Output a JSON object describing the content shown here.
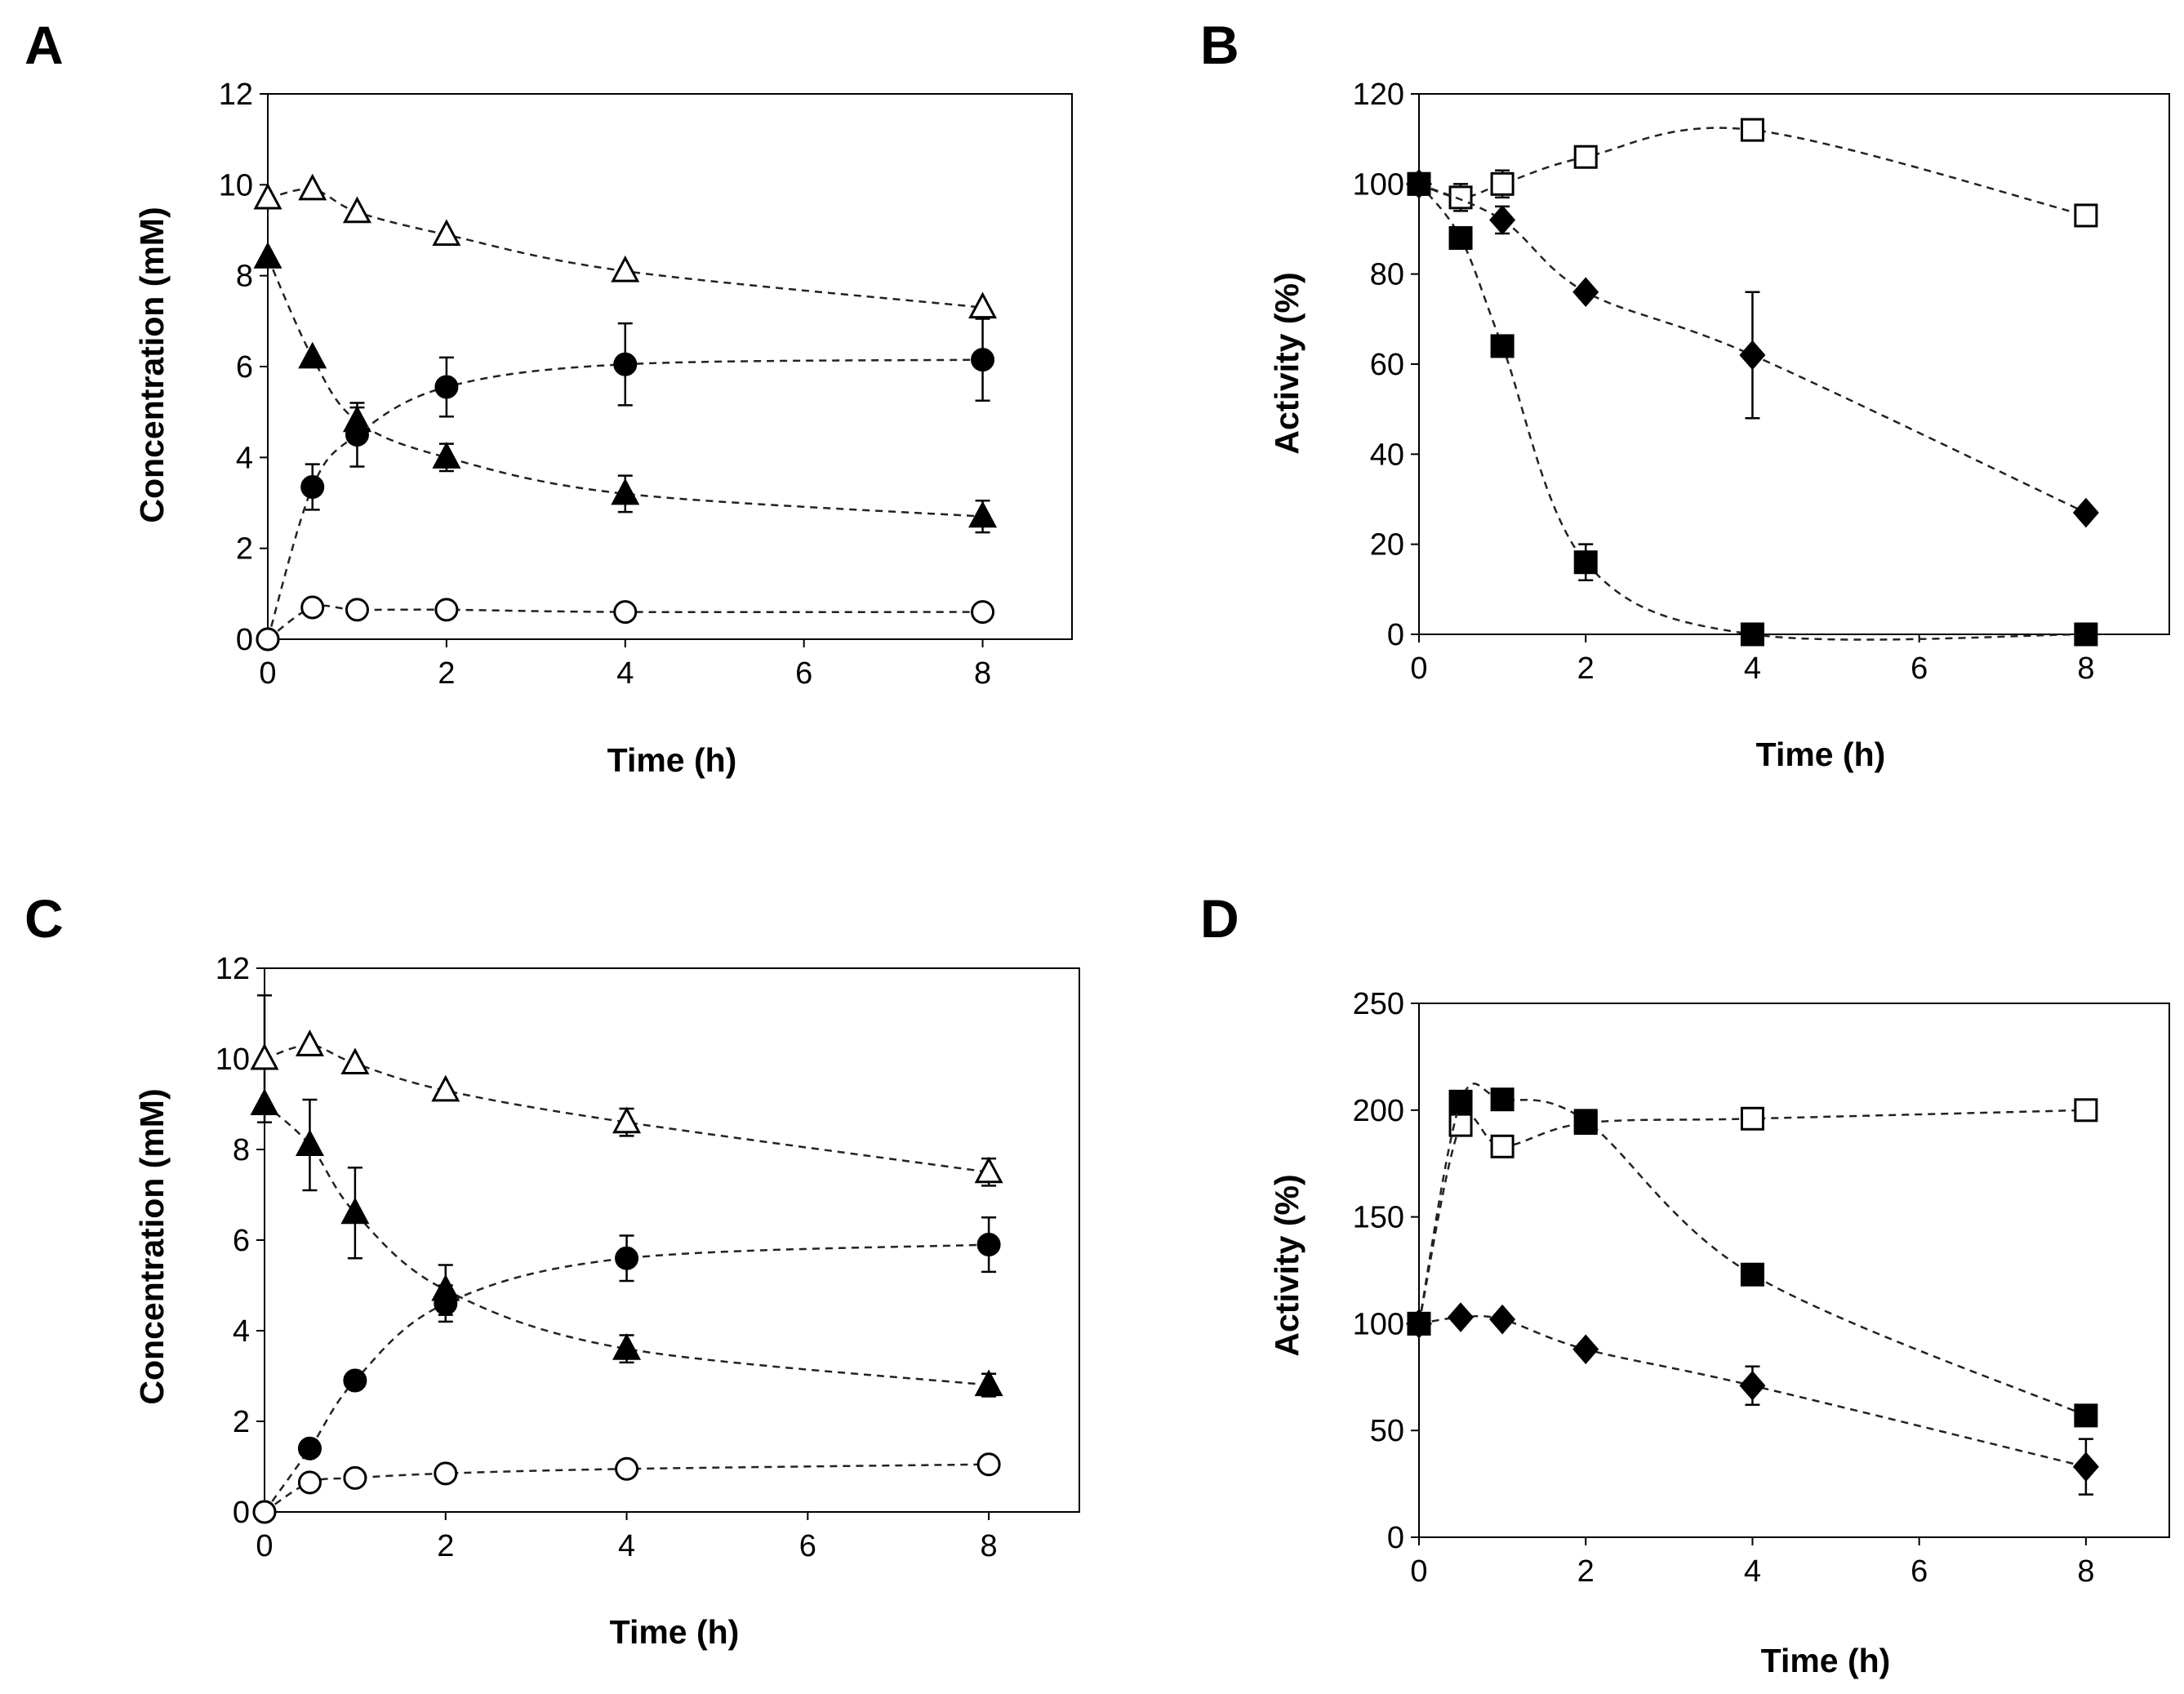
{
  "chart_data": [
    {
      "panel": "A",
      "type": "scatter",
      "xlabel": "Time (h)",
      "ylabel": "Concentration (mM)",
      "xlim": [
        0,
        9
      ],
      "ylim": [
        0,
        12
      ],
      "xticks": [
        0,
        2,
        4,
        6,
        8
      ],
      "yticks": [
        0,
        2,
        4,
        6,
        8,
        10,
        12
      ],
      "series": [
        {
          "marker": "triangle-open",
          "x": [
            0,
            0.5,
            1,
            2,
            4,
            8
          ],
          "y": [
            9.7,
            9.9,
            9.4,
            8.9,
            8.1,
            7.3
          ],
          "err": [
            0,
            0,
            0,
            0,
            0,
            0
          ]
        },
        {
          "marker": "triangle-filled",
          "x": [
            0,
            0.5,
            1,
            2,
            4,
            8
          ],
          "y": [
            8.4,
            6.2,
            4.8,
            4.0,
            3.2,
            2.7
          ],
          "err": [
            0,
            0,
            0.3,
            0.3,
            0.4,
            0.35
          ]
        },
        {
          "marker": "circle-filled",
          "x": [
            0,
            0.5,
            1,
            2,
            4,
            8
          ],
          "y": [
            0,
            3.35,
            4.5,
            5.55,
            6.05,
            6.15
          ],
          "err": [
            0,
            0.5,
            0.7,
            0.65,
            0.9,
            0.9
          ]
        },
        {
          "marker": "circle-open",
          "x": [
            0,
            0.5,
            1,
            2,
            4,
            8
          ],
          "y": [
            0,
            0.7,
            0.65,
            0.65,
            0.6,
            0.6
          ],
          "err": [
            0,
            0,
            0,
            0,
            0,
            0
          ]
        }
      ]
    },
    {
      "panel": "B",
      "type": "scatter",
      "xlabel": "Time (h)",
      "ylabel": "Activity (%)",
      "xlim": [
        0,
        9
      ],
      "ylim": [
        0,
        120
      ],
      "xticks": [
        0,
        2,
        4,
        6,
        8
      ],
      "yticks": [
        0,
        20,
        40,
        60,
        80,
        100,
        120
      ],
      "series": [
        {
          "marker": "square-open",
          "x": [
            0,
            0.5,
            1,
            2,
            4,
            8
          ],
          "y": [
            100,
            97,
            100,
            106,
            112,
            93
          ],
          "err": [
            0,
            3,
            3,
            0,
            0,
            0
          ]
        },
        {
          "marker": "diamond-filled",
          "x": [
            0,
            1,
            2,
            4,
            8
          ],
          "y": [
            100,
            92,
            76,
            62,
            27
          ],
          "err": [
            0,
            3,
            0,
            14,
            0
          ]
        },
        {
          "marker": "square-filled",
          "x": [
            0,
            0.5,
            1,
            2,
            4,
            8
          ],
          "y": [
            100,
            88,
            64,
            16,
            0,
            0
          ],
          "err": [
            0,
            0,
            0,
            4,
            0,
            0
          ]
        }
      ]
    },
    {
      "panel": "C",
      "type": "scatter",
      "xlabel": "Time (h)",
      "ylabel": "Concentration (mM)",
      "xlim": [
        0,
        9
      ],
      "ylim": [
        0,
        12
      ],
      "xticks": [
        0,
        2,
        4,
        6,
        8
      ],
      "yticks": [
        0,
        2,
        4,
        6,
        8,
        10,
        12
      ],
      "series": [
        {
          "marker": "triangle-open",
          "x": [
            0,
            0.5,
            1,
            2,
            4,
            8
          ],
          "y": [
            10.0,
            10.3,
            9.9,
            9.3,
            8.6,
            7.5
          ],
          "err": [
            1.4,
            0,
            0,
            0,
            0.3,
            0.3
          ]
        },
        {
          "marker": "triangle-filled",
          "x": [
            0,
            0.5,
            1,
            2,
            4,
            8
          ],
          "y": [
            9.0,
            8.1,
            6.6,
            4.9,
            3.6,
            2.8
          ],
          "err": [
            0,
            1.0,
            1.0,
            0.55,
            0.3,
            0.25
          ]
        },
        {
          "marker": "circle-filled",
          "x": [
            0,
            0.5,
            1,
            2,
            4,
            8
          ],
          "y": [
            0,
            1.4,
            2.9,
            4.6,
            5.6,
            5.9
          ],
          "err": [
            0,
            0,
            0,
            0.4,
            0.5,
            0.6
          ]
        },
        {
          "marker": "circle-open",
          "x": [
            0,
            0.5,
            1,
            2,
            4,
            8
          ],
          "y": [
            0,
            0.65,
            0.75,
            0.85,
            0.95,
            1.05
          ],
          "err": [
            0,
            0,
            0,
            0,
            0,
            0
          ]
        }
      ]
    },
    {
      "panel": "D",
      "type": "scatter",
      "xlabel": "Time (h)",
      "ylabel": "Activity (%)",
      "xlim": [
        0,
        9
      ],
      "ylim": [
        0,
        250
      ],
      "xticks": [
        0,
        2,
        4,
        6,
        8
      ],
      "yticks": [
        0,
        50,
        100,
        150,
        200,
        250
      ],
      "series": [
        {
          "marker": "square-open",
          "x": [
            0,
            0.5,
            1,
            2,
            4,
            8
          ],
          "y": [
            100,
            193,
            183,
            194,
            196,
            200
          ],
          "err": [
            0,
            0,
            0,
            0,
            0,
            0
          ]
        },
        {
          "marker": "square-filled",
          "x": [
            0,
            0.5,
            1,
            2,
            4,
            8
          ],
          "y": [
            100,
            204,
            205,
            195,
            123,
            57
          ],
          "err": [
            0,
            0,
            0,
            0,
            0,
            0
          ]
        },
        {
          "marker": "diamond-filled",
          "x": [
            0,
            0.5,
            1,
            2,
            4,
            8
          ],
          "y": [
            100,
            103,
            102,
            88,
            71,
            33
          ],
          "err": [
            0,
            0,
            0,
            0,
            9,
            13
          ]
        }
      ]
    }
  ]
}
